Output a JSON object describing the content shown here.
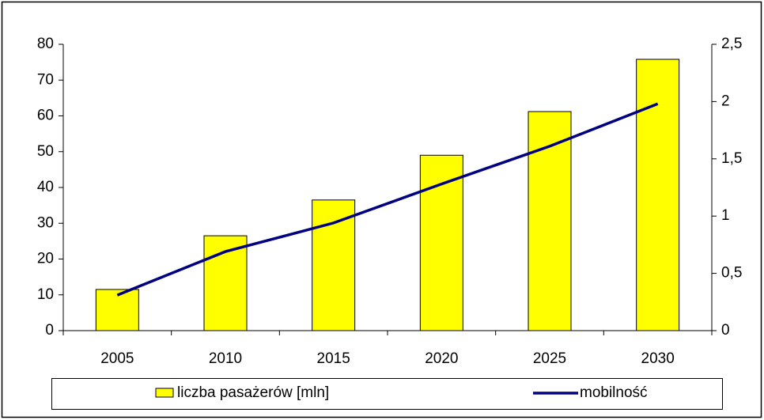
{
  "chart_data": {
    "type": "bar_line",
    "categories": [
      "2005",
      "2010",
      "2015",
      "2020",
      "2025",
      "2030"
    ],
    "series": [
      {
        "name": "liczba pasażerów [mln]",
        "type": "bar",
        "color": "#ffff00",
        "values": [
          11.5,
          26.5,
          36.5,
          49,
          61.2,
          75.8
        ]
      },
      {
        "name": "mobilność",
        "type": "line",
        "axis": "y2",
        "color": "#000080",
        "values": [
          0.31,
          0.69,
          0.94,
          1.28,
          1.61,
          1.98
        ]
      }
    ],
    "ylim": [
      0,
      80
    ],
    "yticks": [
      0,
      10,
      20,
      30,
      40,
      50,
      60,
      70,
      80
    ],
    "y2lim": [
      0,
      2.5
    ],
    "y2ticks": [
      0,
      {
        "value": 0.5,
        "label": "0,5"
      },
      1,
      {
        "value": 1.5,
        "label": "1,5"
      },
      2,
      {
        "value": 2.5,
        "label": "2,5"
      }
    ],
    "legend": "bottom"
  }
}
